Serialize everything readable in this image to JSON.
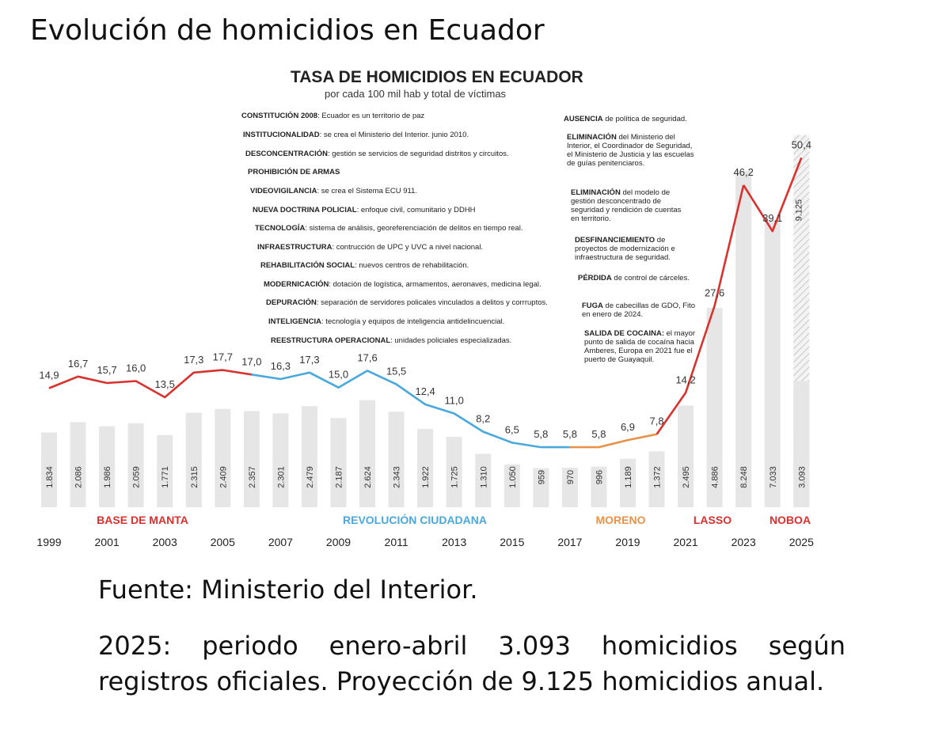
{
  "page_title": "Evolución de homicidios en Ecuador",
  "source": "Fuente: Ministerio del Interior.",
  "footnote": "2025: periodo enero-abril 3.093 homicidios según registros oficiales. Proyección de 9.125 homicidios anual.",
  "notes_left": [
    {
      "bold": "CONSTITUCIÓN 2008",
      "text": ": Ecuador es un territorio de paz"
    },
    {
      "bold": "INSTITUCIONALIDAD",
      "text": ": se crea el Ministerio del Interior. junio 2010."
    },
    {
      "bold": "DESCONCENTRACIÓN",
      "text": ": gestión se servicios de seguridad distritos y circuitos."
    },
    {
      "bold": "PROHIBICIÓN DE ARMAS",
      "text": ""
    },
    {
      "bold": "VIDEOVIGILANCIA",
      "text": ": se crea el Sistema ECU 911."
    },
    {
      "bold": "NUEVA DOCTRINA POLICIAL",
      "text": ": enfoque civil, comunitario y DDHH"
    },
    {
      "bold": "TECNOLOGÍA",
      "text": ": sistema de análisis, georeferenciación de delitos en tiempo real."
    },
    {
      "bold": "INFRAESTRUCTURA",
      "text": ": contrucción de UPC y UVC a nivel nacional."
    },
    {
      "bold": "REHABILITACIÓN SOCIAL",
      "text": ": nuevos centros de rehabilitación."
    },
    {
      "bold": "MODERNICACIÓN",
      "text": ": dotación de logística, armamentos, aeronaves, medicina legal."
    },
    {
      "bold": "DEPURACIÓN",
      "text": ": separación de servidores policales vinculados a delitos y corrruptos."
    },
    {
      "bold": "INTELIGENCIA",
      "text": ": tecnología y equipos de inteligencia antidelincuencial."
    },
    {
      "bold": "REESTRUCTURA OPERACIONAL",
      "text": ": unidades policiales especializadas."
    }
  ],
  "notes_right": [
    {
      "bold": "AUSENCIA",
      "text": " de política de seguridad."
    },
    {
      "bold": "ELIMINACIÓN",
      "text": " del Ministerio del Interior, el Coordinador de Seguridad, el Ministerio de Justicia y las escuelas de guías penitenciaros."
    },
    {
      "bold": "ELIMINACIÓN",
      "text": " del modelo de gestión desconcentrado de seguridad  y rendición de cuentas en territorio."
    },
    {
      "bold": "DESFINANCIEMIENTO",
      "text": " de proyectos de  modernización e infraestructura de seguridad."
    },
    {
      "bold": "PÉRDIDA",
      "text": " de control de cárceles."
    },
    {
      "bold": "FUGA",
      "text": " de cabecillas de GDO, Fito en enero de 2024."
    },
    {
      "bold": "SALIDA DE COCAINA:",
      "text": " el mayor punto de salida de cocaína hacia Amberes, Europa  en 2021 fue el puerto de Guayaquil."
    }
  ],
  "chart_data": {
    "type": "bar",
    "title": "TASA DE HOMICIDIOS EN ECUADOR",
    "subtitle": "por cada 100 mil hab y total de víctimas",
    "years": [
      1999,
      2000,
      2001,
      2002,
      2003,
      2004,
      2005,
      2006,
      2007,
      2008,
      2009,
      2010,
      2011,
      2012,
      2013,
      2014,
      2015,
      2016,
      2017,
      2018,
      2019,
      2020,
      2021,
      2022,
      2023,
      2024,
      2025
    ],
    "x_tick_labels": [
      "1999",
      "2001",
      "2003",
      "2005",
      "2007",
      "2009",
      "2011",
      "2013",
      "2015",
      "2017",
      "2019",
      "2021",
      "2023",
      "2025"
    ],
    "victims": [
      1834,
      2086,
      1986,
      2059,
      1771,
      2315,
      2409,
      2357,
      2301,
      2479,
      2187,
      2624,
      2343,
      1922,
      1725,
      1310,
      1050,
      959,
      970,
      996,
      1189,
      1372,
      2495,
      4886,
      8248,
      7033,
      3093
    ],
    "victims_labels": [
      "1.834",
      "2.086",
      "1.986",
      "2.059",
      "1.771",
      "2.315",
      "2.409",
      "2.357",
      "2.301",
      "2.479",
      "2.187",
      "2.624",
      "2.343",
      "1.922",
      "1.725",
      "1.310",
      "1.050",
      "959",
      "970",
      "996",
      "1.189",
      "1.372",
      "2.495",
      "4.886",
      "8.248",
      "7.033",
      "3.093"
    ],
    "projection": {
      "year": 2025,
      "value": 9125,
      "label": "9.125"
    },
    "rate": [
      14.9,
      16.7,
      15.7,
      16.0,
      13.5,
      17.3,
      17.7,
      17.0,
      16.3,
      17.3,
      15.0,
      17.6,
      15.5,
      12.4,
      11.0,
      8.2,
      6.5,
      5.8,
      5.8,
      5.8,
      6.9,
      7.8,
      14.2,
      27.6,
      46.2,
      39.1,
      50.4
    ],
    "rate_labels": [
      "14,9",
      "16,7",
      "15,7",
      "16,0",
      "13,5",
      "17,3",
      "17,7",
      "17,0",
      "16,3",
      "17,3",
      "15,0",
      "17,6",
      "15,5",
      "12,4",
      "11,0",
      "8,2",
      "6,5",
      "5,8",
      "5,8",
      "5,8",
      "6,9",
      "7,8",
      "14,2",
      "27,6",
      "46,2",
      "39,1",
      "50,4"
    ],
    "periods": [
      {
        "name": "BASE DE MANTA",
        "start": 1999,
        "end": 2006,
        "color": "#d9322e"
      },
      {
        "name": "REVOLUCIÓN CIUDADANA",
        "start": 2006,
        "end": 2017,
        "color": "#4aa8dc"
      },
      {
        "name": "MORENO",
        "start": 2017,
        "end": 2020,
        "color": "#e8924a"
      },
      {
        "name": "LASSO",
        "start": 2020,
        "end": 2023,
        "color": "#d9322e"
      },
      {
        "name": "NOBOA",
        "start": 2023,
        "end": 2025,
        "color": "#d9322e"
      }
    ],
    "bar_color": "#e6e6e6"
  }
}
